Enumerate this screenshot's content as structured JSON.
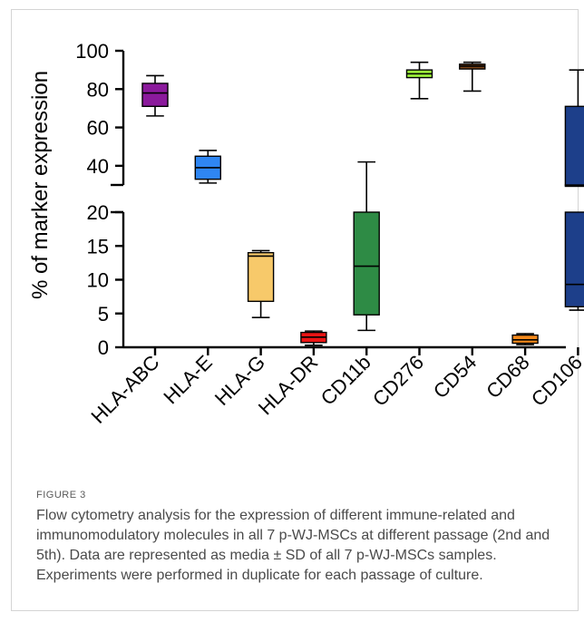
{
  "figure": {
    "label": "FIGURE 3",
    "caption": "Flow cytometry analysis for the expression of different immune-related and immunomodulatory molecules in all 7 p-WJ-MSCs at different passage (2nd and 5th). Data are represented as media ± SD of all 7 p-WJ-MSCs samples. Experiments were performed in duplicate for each passage of culture."
  },
  "chart_data": {
    "type": "box",
    "ylabel": "% of marker expression",
    "xlabel": "",
    "axis_break": true,
    "y_segments": [
      {
        "range": [
          0,
          20
        ],
        "ticks": [
          0,
          5,
          10,
          15,
          20
        ]
      },
      {
        "range": [
          30,
          100
        ],
        "ticks": [
          40,
          60,
          80,
          100
        ]
      }
    ],
    "categories": [
      "HLA-ABC",
      "HLA-E",
      "HLA-G",
      "HLA-DR",
      "CD11b",
      "CD276",
      "CD54",
      "CD68",
      "CD106"
    ],
    "boxes": [
      {
        "label": "HLA-ABC",
        "min": 66,
        "q1": 71,
        "median": 78,
        "q3": 83,
        "max": 87,
        "color": "#8b1a9c"
      },
      {
        "label": "HLA-E",
        "min": 31,
        "q1": 33,
        "median": 39,
        "q3": 45,
        "max": 48,
        "color": "#2f86f2"
      },
      {
        "label": "HLA-G",
        "min": 4.4,
        "q1": 6.8,
        "median": 13.5,
        "q3": 14,
        "max": 14.3,
        "color": "#f7c96a"
      },
      {
        "label": "HLA-DR",
        "min": 0.3,
        "q1": 0.7,
        "median": 1.5,
        "q3": 2.2,
        "max": 2.4,
        "color": "#ee1515"
      },
      {
        "label": "CD11b",
        "min": 2.5,
        "q1": 4.8,
        "median": 12,
        "q3": 20,
        "max": 42,
        "color": "#2e8b45"
      },
      {
        "label": "CD276",
        "min": 75,
        "q1": 86,
        "median": 88,
        "q3": 90,
        "max": 94,
        "color": "#9cf03a"
      },
      {
        "label": "CD54",
        "min": 79,
        "q1": 90.5,
        "median": 92,
        "q3": 93,
        "max": 94,
        "color": "#7a4519"
      },
      {
        "label": "CD68",
        "min": 0.4,
        "q1": 0.6,
        "median": 1.1,
        "q3": 1.8,
        "max": 2,
        "color": "#f58a1c"
      },
      {
        "label": "CD106",
        "min": 5.5,
        "q1": 6,
        "median": 9.3,
        "q3": 71,
        "max": 90,
        "color": "#1d3f8a"
      }
    ]
  }
}
